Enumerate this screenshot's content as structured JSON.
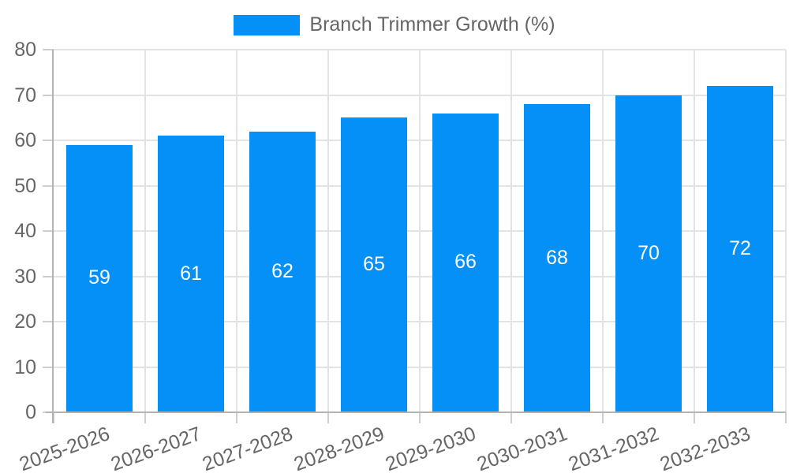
{
  "chart_data": {
    "type": "bar",
    "title": "Branch Trimmer Growth (%)",
    "categories": [
      "2025-2026",
      "2026-2027",
      "2027-2028",
      "2028-2029",
      "2029-2030",
      "2030-2031",
      "2031-2032",
      "2032-2033"
    ],
    "values": [
      59,
      61,
      62,
      65,
      66,
      68,
      70,
      72
    ],
    "xlabel": "",
    "ylabel": "",
    "ylim": [
      0,
      80
    ],
    "ytick_step": 10,
    "ytick_labels": [
      "0",
      "10",
      "20",
      "30",
      "40",
      "50",
      "60",
      "70",
      "80"
    ],
    "grid": true,
    "bar_value_labels_visible": true,
    "legend_position": "top",
    "colors": {
      "bar": "#0590f8",
      "bar_value_label": "#ffffff",
      "axis_text": "#666666",
      "gridline": "#e3e3e3",
      "tick_mark": "#cfcfcf",
      "axis_line": "#b3b3b3",
      "background": "#ffffff"
    }
  }
}
